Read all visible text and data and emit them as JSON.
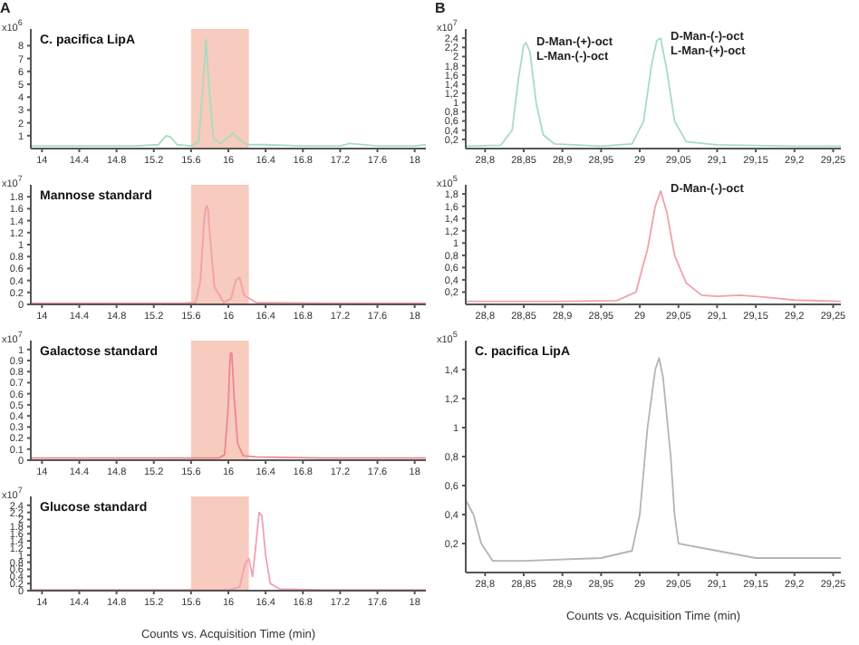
{
  "chart_data": [
    {
      "type": "line",
      "title": "C. pacifica LipA",
      "ylabel": "x10$^{6}$",
      "annotations": [
        "A"
      ],
      "grid": false,
      "legend": false,
      "marker": "none",
      "x": [
        13.88,
        14.2,
        14.6,
        15.0,
        15.25,
        15.33,
        15.38,
        15.45,
        15.6,
        15.68,
        15.73,
        15.76,
        15.79,
        15.84,
        15.92,
        16.0,
        16.05,
        16.1,
        16.2,
        16.4,
        16.8,
        17.2,
        17.3,
        17.6,
        18.0,
        18.12
      ],
      "series": [
        {
          "color": "#a8dcc0",
          "values": [
            0.2,
            0.2,
            0.2,
            0.2,
            0.3,
            1.0,
            0.9,
            0.3,
            0.2,
            0.5,
            5.0,
            8.5,
            5.0,
            0.8,
            0.4,
            0.9,
            1.2,
            0.8,
            0.3,
            0.3,
            0.2,
            0.2,
            0.4,
            0.2,
            0.2,
            0.3
          ]
        }
      ],
      "xlim": [
        13.88,
        18.12
      ],
      "xticks": [
        14,
        14.4,
        14.8,
        15.2,
        15.6,
        16,
        16.4,
        16.8,
        17.2,
        17.6,
        18
      ],
      "ylim": [
        0,
        9.3
      ],
      "yticks": [
        1,
        2,
        3,
        4,
        5,
        6,
        7,
        8
      ],
      "bands": [
        {
          "axis": "x",
          "from": 15.6,
          "to": 16.22,
          "color": "#f7cbbd"
        }
      ]
    },
    {
      "type": "line",
      "title": "Mannose standard",
      "ylabel": "x10$^{7}$",
      "grid": false,
      "legend": false,
      "marker": "none",
      "x": [
        13.88,
        14.5,
        15.5,
        15.65,
        15.7,
        15.74,
        15.755,
        15.77,
        15.785,
        15.8,
        15.85,
        15.95,
        16.03,
        16.08,
        16.12,
        16.17,
        16.3,
        17,
        18.12
      ],
      "series": [
        {
          "color": "#f2a0aa",
          "values": [
            0.02,
            0.02,
            0.02,
            0.03,
            0.4,
            1.4,
            1.6,
            1.65,
            1.55,
            1.2,
            0.3,
            0.03,
            0.1,
            0.4,
            0.45,
            0.15,
            0.03,
            0.02,
            0.02
          ]
        }
      ],
      "xlim": [
        13.88,
        18.12
      ],
      "xticks": [
        14,
        14.4,
        14.8,
        15.2,
        15.6,
        16,
        16.4,
        16.8,
        17.2,
        17.6,
        18
      ],
      "ylim": [
        0,
        2.0
      ],
      "yticks": [
        0,
        0.2,
        0.4,
        0.6,
        0.8,
        1,
        1.2,
        1.4,
        1.6,
        1.8
      ],
      "bands": [
        {
          "axis": "x",
          "from": 15.6,
          "to": 16.22,
          "color": "#f7cbbd"
        }
      ]
    },
    {
      "type": "line",
      "title": "Galactose standard",
      "ylabel": "x10$^{7}$",
      "grid": false,
      "legend": false,
      "marker": "none",
      "x": [
        13.88,
        15,
        15.9,
        15.96,
        16,
        16.012,
        16.022,
        16.03,
        16.038,
        16.048,
        16.06,
        16.1,
        16.16,
        16.3,
        17,
        18.12
      ],
      "series": [
        {
          "color": "#e8898e",
          "values": [
            0.02,
            0.02,
            0.02,
            0.05,
            0.5,
            0.8,
            0.96,
            0.97,
            0.96,
            0.8,
            0.6,
            0.15,
            0.04,
            0.03,
            0.02,
            0.02
          ]
        }
      ],
      "xlim": [
        13.88,
        18.12
      ],
      "xticks": [
        14,
        14.4,
        14.8,
        15.2,
        15.6,
        16,
        16.4,
        16.8,
        17.2,
        17.6,
        18
      ],
      "ylim": [
        0,
        1.08
      ],
      "yticks": [
        0,
        0.1,
        0.2,
        0.3,
        0.4,
        0.5,
        0.6,
        0.7,
        0.8,
        0.9,
        1
      ],
      "bands": [
        {
          "axis": "x",
          "from": 15.6,
          "to": 16.22,
          "color": "#f7cbbd"
        }
      ]
    },
    {
      "type": "line",
      "title": "Glucose standard",
      "ylabel": "x10$^{7}$",
      "xlabel": "Counts vs. Acquisition Time (min)",
      "grid": false,
      "legend": false,
      "marker": "none",
      "x": [
        13.88,
        15,
        16.0,
        16.12,
        16.18,
        16.22,
        16.26,
        16.3,
        16.33,
        16.36,
        16.4,
        16.45,
        16.55,
        17,
        18.12
      ],
      "series": [
        {
          "color": "#f2a0b4",
          "values": [
            0.02,
            0.02,
            0.02,
            0.1,
            0.75,
            0.9,
            0.4,
            1.4,
            2.2,
            2.1,
            1.0,
            0.2,
            0.05,
            0.02,
            0.02
          ]
        }
      ],
      "xlim": [
        13.88,
        18.12
      ],
      "xticks": [
        14,
        14.4,
        14.8,
        15.2,
        15.6,
        16,
        16.4,
        16.8,
        17.2,
        17.6,
        18
      ],
      "ylim": [
        0,
        2.65
      ],
      "yticks": [
        0,
        0.2,
        0.4,
        0.6,
        0.8,
        1,
        1.2,
        1.4,
        1.6,
        1.8,
        2,
        2.2,
        2.4
      ],
      "bands": [
        {
          "axis": "x",
          "from": 15.6,
          "to": 16.22,
          "color": "#f7cbbd"
        }
      ]
    },
    {
      "type": "line",
      "ylabel": "x10$^{7}$",
      "grid": false,
      "legend": false,
      "marker": "none",
      "annotations": [
        "B",
        "D-Man-(+)-oct\nL-Man-(-)-oct",
        "D-Man-(-)-oct\nL-Man-(+)-oct"
      ],
      "x": [
        28.775,
        28.82,
        28.835,
        28.843,
        28.85,
        28.853,
        28.858,
        28.866,
        28.875,
        28.89,
        28.95,
        28.99,
        29.005,
        29.015,
        29.022,
        29.027,
        29.035,
        29.045,
        29.06,
        29.1,
        29.2,
        29.26
      ],
      "series": [
        {
          "color": "#a8dcc0",
          "values": [
            0.05,
            0.07,
            0.4,
            1.5,
            2.25,
            2.3,
            2.1,
            1.0,
            0.3,
            0.1,
            0.05,
            0.1,
            0.6,
            1.8,
            2.35,
            2.4,
            1.7,
            0.6,
            0.15,
            0.08,
            0.05,
            0.05
          ]
        }
      ],
      "xlim": [
        28.775,
        29.26
      ],
      "xticks": [
        {
          "value": 28.8,
          "label": "28,8"
        },
        {
          "value": 28.85,
          "label": "28,85"
        },
        {
          "value": 28.9,
          "label": "28,9"
        },
        {
          "value": 28.95,
          "label": "28,95"
        },
        {
          "value": 29,
          "label": "29"
        },
        {
          "value": 29.05,
          "label": "29,05"
        },
        {
          "value": 29.1,
          "label": "29,1"
        },
        {
          "value": 29.15,
          "label": "29,15"
        },
        {
          "value": 29.2,
          "label": "29,2"
        },
        {
          "value": 29.25,
          "label": "29,25"
        }
      ],
      "ylim": [
        0,
        2.6
      ],
      "yticks": [
        {
          "value": 0.2,
          "label": "0,2"
        },
        {
          "value": 0.4,
          "label": "0,4"
        },
        {
          "value": 0.6,
          "label": "0,6"
        },
        {
          "value": 0.8,
          "label": "0,8"
        },
        {
          "value": 1,
          "label": "1"
        },
        {
          "value": 1.2,
          "label": "1,2"
        },
        {
          "value": 1.4,
          "label": "1,4"
        },
        {
          "value": 1.6,
          "label": "1,6"
        },
        {
          "value": 1.8,
          "label": "1,8"
        },
        {
          "value": 2,
          "label": "2"
        },
        {
          "value": 2.2,
          "label": "2,2"
        },
        {
          "value": 2.4,
          "label": "2,4"
        }
      ]
    },
    {
      "type": "line",
      "ylabel": "x10$^{5}$",
      "grid": false,
      "legend": false,
      "marker": "none",
      "annotations": [
        "D-Man-(-)-oct"
      ],
      "x": [
        28.775,
        28.9,
        28.97,
        28.995,
        29.01,
        29.02,
        29.027,
        29.035,
        29.045,
        29.06,
        29.08,
        29.1,
        29.13,
        29.16,
        29.2,
        29.26
      ],
      "series": [
        {
          "color": "#f2a0aa",
          "values": [
            0.05,
            0.05,
            0.06,
            0.2,
            0.9,
            1.6,
            1.85,
            1.5,
            0.8,
            0.35,
            0.15,
            0.13,
            0.15,
            0.12,
            0.07,
            0.05
          ]
        }
      ],
      "xlim": [
        28.775,
        29.26
      ],
      "xticks": [
        {
          "value": 28.8,
          "label": "28,8"
        },
        {
          "value": 28.85,
          "label": "28,85"
        },
        {
          "value": 28.9,
          "label": "28,9"
        },
        {
          "value": 28.95,
          "label": "28,95"
        },
        {
          "value": 29,
          "label": "29"
        },
        {
          "value": 29.05,
          "label": "29,05"
        },
        {
          "value": 29.1,
          "label": "29,1"
        },
        {
          "value": 29.15,
          "label": "29,15"
        },
        {
          "value": 29.2,
          "label": "29,2"
        },
        {
          "value": 29.25,
          "label": "29,25"
        }
      ],
      "ylim": [
        0,
        1.95
      ],
      "yticks": [
        {
          "value": 0.2,
          "label": "0,2"
        },
        {
          "value": 0.4,
          "label": "0,4"
        },
        {
          "value": 0.6,
          "label": "0,6"
        },
        {
          "value": 0.8,
          "label": "0,8"
        },
        {
          "value": 1,
          "label": "1"
        },
        {
          "value": 1.2,
          "label": "1,2"
        },
        {
          "value": 1.4,
          "label": "1,4"
        },
        {
          "value": 1.6,
          "label": "1,6"
        },
        {
          "value": 1.8,
          "label": "1,8"
        }
      ]
    },
    {
      "type": "line",
      "title": "C. pacifica LipA",
      "ylabel": "x10$^{5}$",
      "xlabel": "Counts vs. Acquisition Time (min)",
      "grid": false,
      "legend": false,
      "marker": "none",
      "x": [
        28.775,
        28.785,
        28.795,
        28.81,
        28.85,
        28.95,
        28.99,
        29.0,
        29.01,
        29.02,
        29.025,
        29.03,
        29.04,
        29.045,
        29.05,
        29.1,
        29.15,
        29.26
      ],
      "series": [
        {
          "color": "#b4b4b4",
          "values": [
            0.5,
            0.4,
            0.2,
            0.08,
            0.08,
            0.1,
            0.15,
            0.4,
            1.0,
            1.4,
            1.48,
            1.35,
            0.8,
            0.4,
            0.2,
            0.15,
            0.1,
            0.1
          ]
        }
      ],
      "xlim": [
        28.775,
        29.26
      ],
      "xticks": [
        {
          "value": 28.8,
          "label": "28,8"
        },
        {
          "value": 28.85,
          "label": "28,85"
        },
        {
          "value": 28.9,
          "label": "28,9"
        },
        {
          "value": 28.95,
          "label": "28,95"
        },
        {
          "value": 29,
          "label": "29"
        },
        {
          "value": 29.05,
          "label": "29,05"
        },
        {
          "value": 29.1,
          "label": "29,1"
        },
        {
          "value": 29.15,
          "label": "29,15"
        },
        {
          "value": 29.2,
          "label": "29,2"
        },
        {
          "value": 29.25,
          "label": "29,25"
        }
      ],
      "ylim": [
        0,
        1.6
      ],
      "yticks": [
        {
          "value": 0.2,
          "label": "0,2"
        },
        {
          "value": 0.4,
          "label": "0,4"
        },
        {
          "value": 0.6,
          "label": "0,6"
        },
        {
          "value": 0.8,
          "label": "0,8"
        },
        {
          "value": 1,
          "label": "1"
        },
        {
          "value": 1.2,
          "label": "1,2"
        },
        {
          "value": 1.4,
          "label": "1,4"
        }
      ]
    }
  ]
}
